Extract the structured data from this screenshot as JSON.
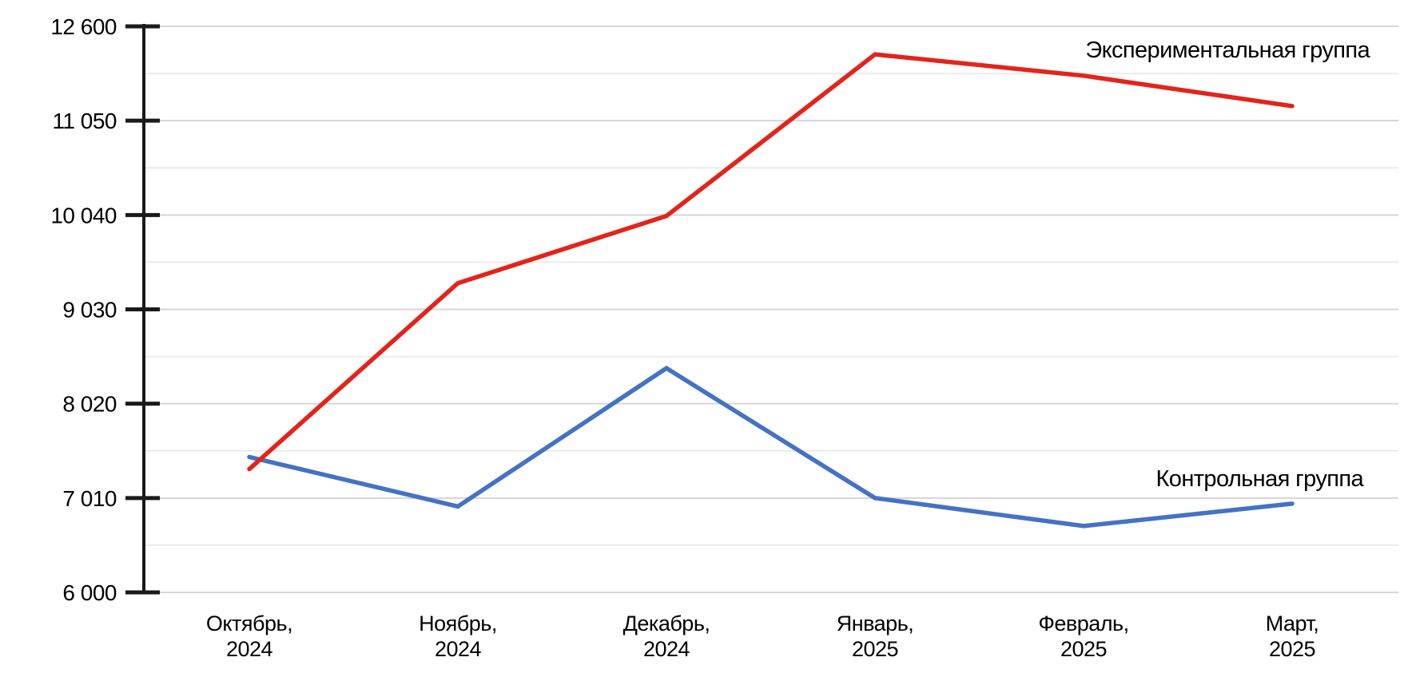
{
  "chart_data": {
    "type": "line",
    "title": "",
    "xlabel": "",
    "ylabel": "",
    "ylim": [
      6000,
      12600
    ],
    "grid": "horizontal major + minor, no vertical gridlines",
    "legend_position": "inline labels at right side of plot, next to each line",
    "categories": [
      [
        "Октябрь,",
        "2024"
      ],
      [
        "Ноябрь,",
        "2024"
      ],
      [
        "Декабрь,",
        "2024"
      ],
      [
        "Январь,",
        "2025"
      ],
      [
        "Февраль,",
        "2025"
      ],
      [
        "Март,",
        "2025"
      ]
    ],
    "yticks": {
      "values": [
        6000,
        7010,
        8020,
        9030,
        10040,
        11050,
        12600
      ],
      "labels": [
        "6 000",
        "7 010",
        "8 020",
        "9 030",
        "10 040",
        "11 050",
        "12 600"
      ]
    },
    "series": [
      {
        "name": "Экспериментальная группа",
        "color": "#e2241b",
        "values": [
          7320,
          9310,
          10030,
          12140,
          11790,
          11290
        ]
      },
      {
        "name": "Контрольная группа",
        "color": "#4472c4",
        "values": [
          7450,
          6920,
          8400,
          7010,
          6710,
          6950
        ]
      }
    ],
    "colors": {
      "axis": "#1a1a1a",
      "major_gridline": "#d6d6d6",
      "minor_gridline": "#ebebeb",
      "text": "#000000",
      "background": "#ffffff"
    }
  }
}
